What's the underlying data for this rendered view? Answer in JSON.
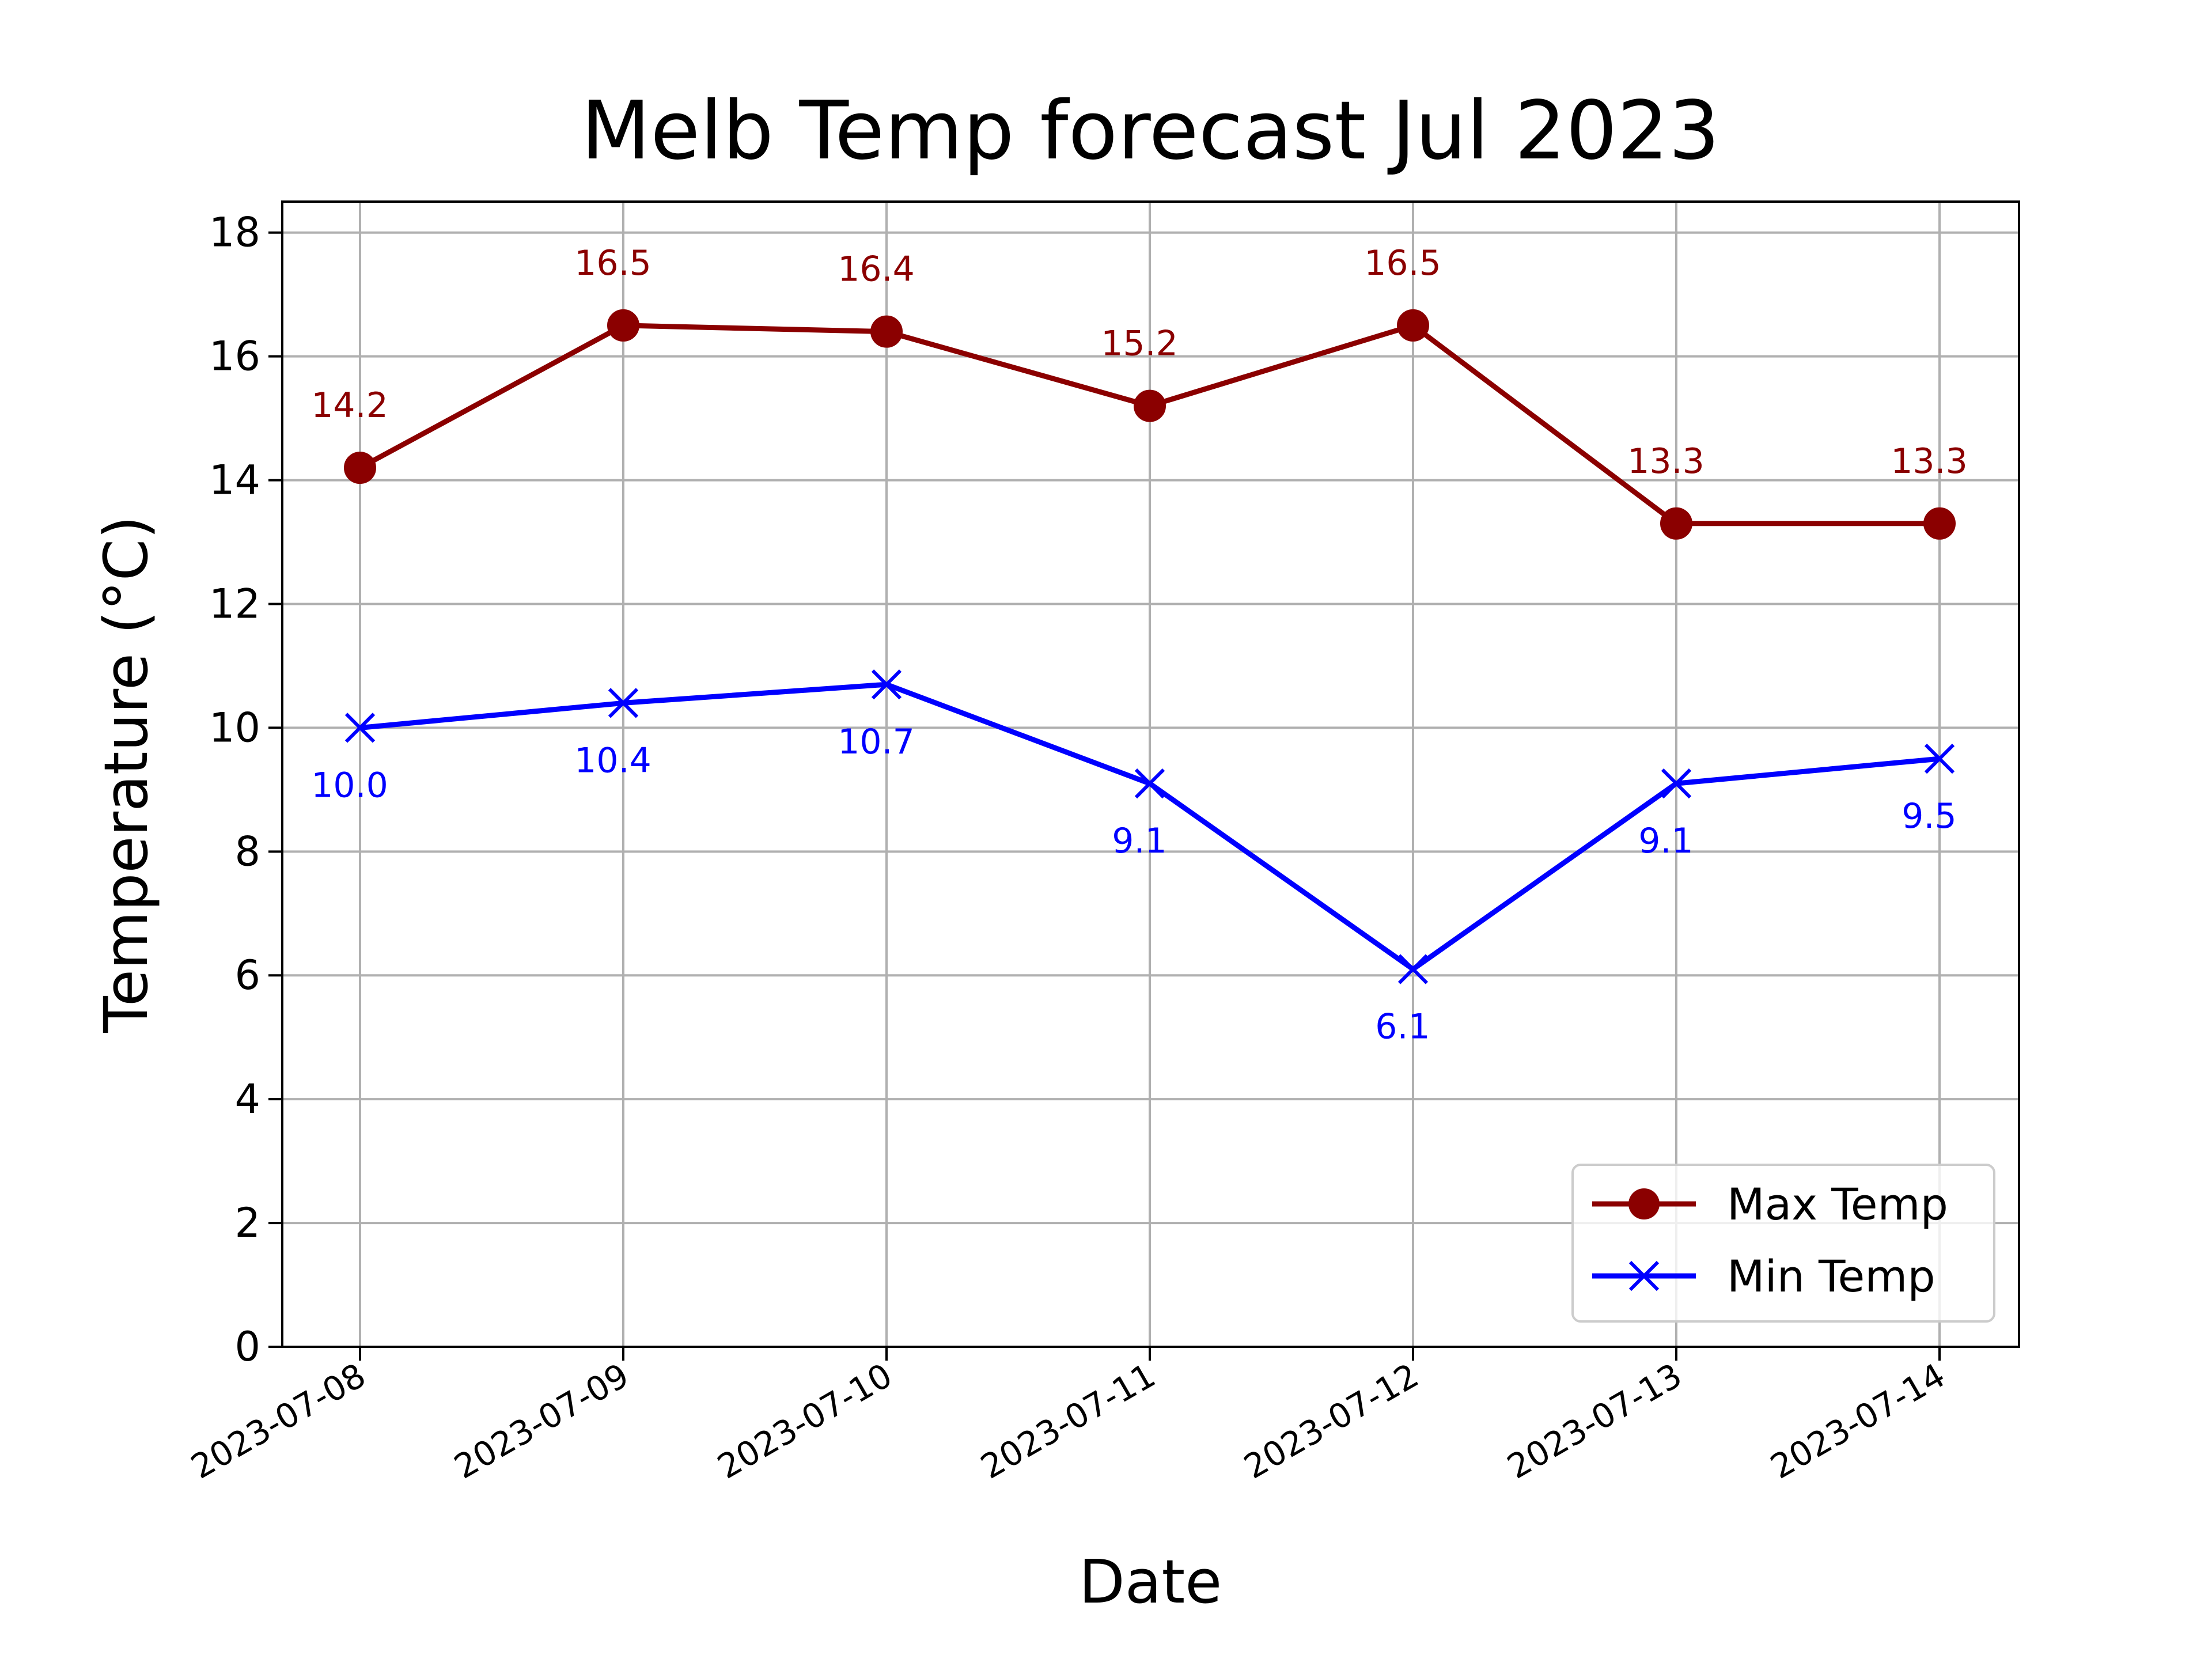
{
  "chart_data": {
    "type": "line",
    "title": "Melb Temp forecast Jul 2023",
    "xlabel": "Date",
    "ylabel": "Temperature (°C)",
    "ylim": [
      0,
      18.5
    ],
    "yticks": [
      0,
      2,
      4,
      6,
      8,
      10,
      12,
      14,
      16,
      18
    ],
    "grid": true,
    "legend_position": "bottom-right",
    "x": [
      "2023-07-08",
      "2023-07-09",
      "2023-07-10",
      "2023-07-11",
      "2023-07-12",
      "2023-07-13",
      "2023-07-14"
    ],
    "series": [
      {
        "name": "Max Temp",
        "color": "#8b0000",
        "marker": "circle",
        "values": [
          14.2,
          16.5,
          16.4,
          15.2,
          16.5,
          13.3,
          13.3
        ],
        "labels": [
          "14.2",
          "16.5",
          "16.4",
          "15.2",
          "16.5",
          "13.3",
          "13.3"
        ],
        "label_placement": "above"
      },
      {
        "name": "Min Temp",
        "color": "#0000ff",
        "marker": "x",
        "values": [
          10.0,
          10.4,
          10.7,
          9.1,
          6.1,
          9.1,
          9.5
        ],
        "labels": [
          "10.0",
          "10.4",
          "10.7",
          "9.1",
          "6.1",
          "9.1",
          "9.5"
        ],
        "label_placement": "below"
      }
    ]
  }
}
